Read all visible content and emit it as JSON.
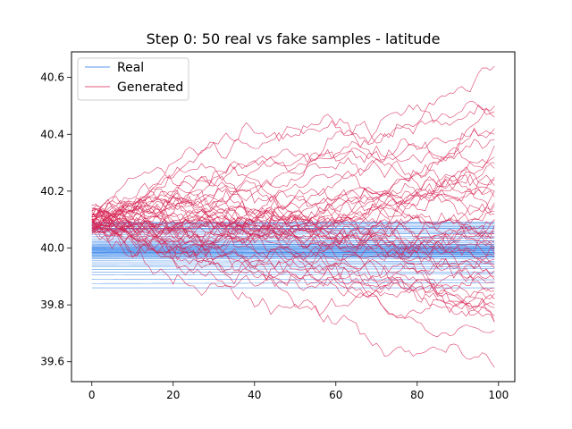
{
  "colors": {
    "real": "#1f77e8",
    "generated": "#d62050"
  },
  "chart_data": {
    "type": "line",
    "title": "Step 0: 50 real vs fake samples - latitude",
    "xlabel": "",
    "ylabel": "",
    "xlim": [
      -5,
      104
    ],
    "ylim": [
      39.53,
      40.69
    ],
    "xticks": [
      0,
      20,
      40,
      60,
      80,
      100
    ],
    "yticks": [
      39.6,
      39.8,
      40.0,
      40.2,
      40.4,
      40.6
    ],
    "legend_position": "top-left",
    "x_range": [
      0,
      99
    ],
    "real_series": {
      "name": "Real",
      "count": 50,
      "levels": [
        39.86,
        39.875,
        39.89,
        39.905,
        39.915,
        39.925,
        39.935,
        39.94,
        39.948,
        39.955,
        39.962,
        39.966,
        39.97,
        39.973,
        39.976,
        39.979,
        39.981,
        39.983,
        39.985,
        39.987,
        39.989,
        39.991,
        39.993,
        39.995,
        39.997,
        39.999,
        40.001,
        40.003,
        40.005,
        40.008,
        40.011,
        40.014,
        40.018,
        40.022,
        40.027,
        40.033,
        40.04,
        40.048,
        40.055,
        40.06,
        40.065,
        40.07,
        40.075,
        40.08,
        40.085,
        40.088,
        40.09,
        40.068,
        39.985,
        39.972
      ],
      "drift": [
        0.0,
        0.003,
        -0.002,
        0.004,
        0.0,
        0.002,
        -0.001,
        0.003,
        0.0,
        -0.002,
        0.001,
        0.002,
        0.0,
        -0.003,
        0.001,
        0.0,
        0.002,
        -0.001,
        0.0,
        0.003,
        -0.002,
        0.001,
        0.0,
        0.002,
        -0.001,
        0.0,
        0.003,
        -0.002,
        0.001,
        0.0,
        0.002,
        -0.001,
        0.0,
        0.003,
        -0.002,
        0.001,
        0.0,
        0.002,
        -0.001,
        0.0,
        0.003,
        -0.002,
        0.001,
        0.0,
        0.002,
        -0.001,
        0.0,
        0.003,
        -0.002,
        0.001
      ]
    },
    "generated_series": {
      "name": "Generated",
      "count": 50,
      "start_values": [
        40.05,
        40.07,
        40.09,
        40.11,
        40.13,
        40.06,
        40.08,
        40.1,
        40.12,
        40.14,
        40.07,
        40.09,
        40.11,
        40.05,
        40.1,
        40.15,
        40.08,
        40.06,
        40.12,
        40.09,
        40.1,
        40.13,
        40.07,
        40.11,
        40.08,
        40.06,
        40.1,
        40.12,
        40.09,
        40.14,
        40.07,
        40.11,
        40.08,
        40.13,
        40.1,
        40.06,
        40.09,
        40.12,
        40.08,
        40.11,
        40.07,
        40.1,
        40.13,
        40.09,
        40.06,
        40.12,
        40.08,
        40.1,
        40.11,
        40.07
      ],
      "end_values": [
        40.64,
        40.5,
        40.46,
        40.42,
        40.38,
        40.32,
        40.28,
        40.25,
        40.22,
        40.2,
        40.18,
        40.15,
        40.12,
        40.1,
        40.08,
        40.06,
        40.04,
        40.02,
        40.0,
        39.98,
        39.96,
        39.94,
        39.92,
        39.9,
        39.88,
        39.86,
        39.84,
        39.82,
        39.79,
        39.76,
        39.74,
        39.71,
        39.58,
        40.48,
        40.36,
        40.3,
        40.24,
        40.2,
        40.16,
        40.13,
        40.1,
        40.05,
        40.0,
        39.97,
        39.93,
        39.89,
        39.85,
        39.8,
        39.74,
        40.4
      ],
      "volatility": 0.022
    }
  }
}
